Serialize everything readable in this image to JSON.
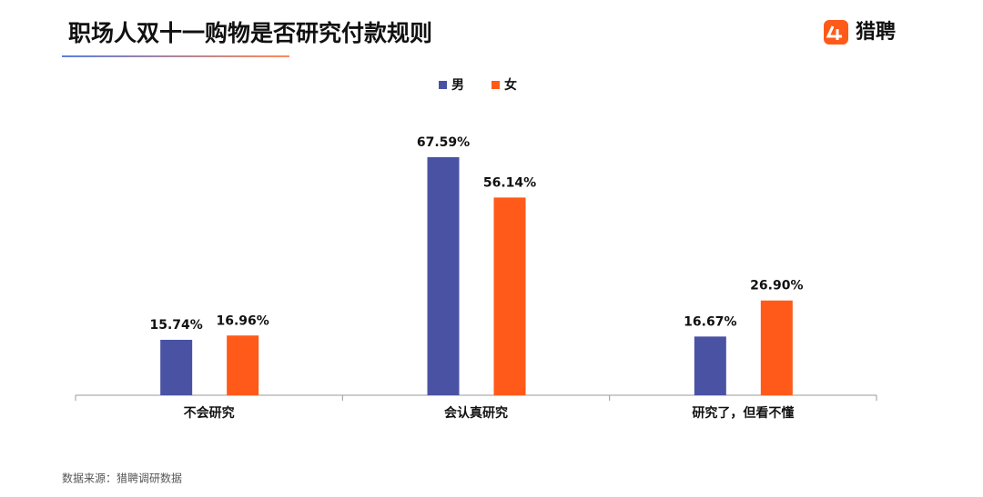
{
  "brand": {
    "name": "猎聘"
  },
  "chart_data": {
    "type": "bar",
    "title": "职场人双十一购物是否研究付款规则",
    "categories": [
      "不会研究",
      "会认真研究",
      "研究了，但看不懂"
    ],
    "series": [
      {
        "name": "男",
        "color": "#4a52a3",
        "values": [
          15.74,
          67.59,
          16.67
        ],
        "value_labels": [
          "15.74%",
          "67.59%",
          "16.67%"
        ]
      },
      {
        "name": "女",
        "color": "#ff5a1a",
        "values": [
          16.96,
          56.14,
          26.9
        ],
        "value_labels": [
          "16.96%",
          "56.14%",
          "26.90%"
        ]
      }
    ],
    "legend": "top",
    "source": "数据来源：猎聘调研数据"
  }
}
